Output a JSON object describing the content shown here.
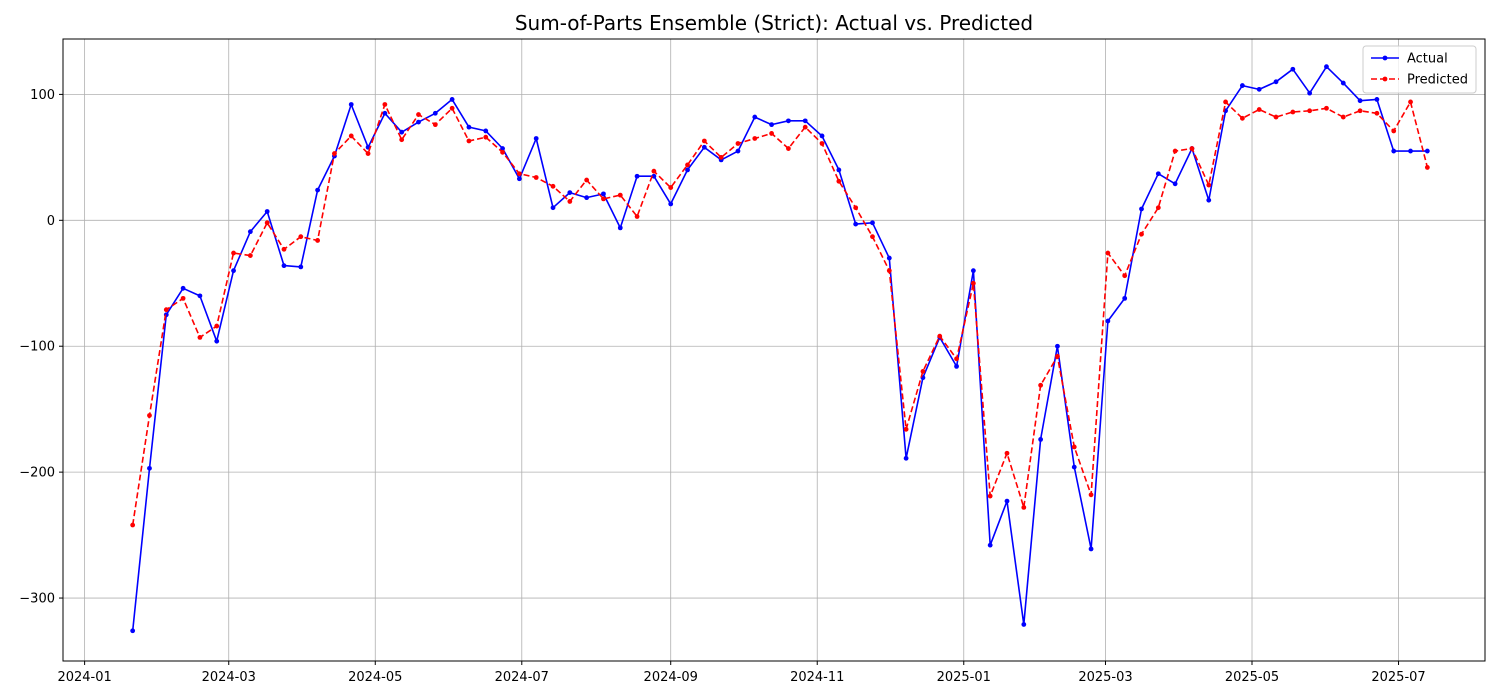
{
  "chart_data": {
    "type": "line",
    "title": "Sum-of-Parts Ensemble (Strict): Actual vs. Predicted",
    "xlabel": "",
    "ylabel": "",
    "x_axis_type": "date",
    "xlim": [
      "2023-12-23",
      "2025-08-06"
    ],
    "ylim": [
      -350,
      144
    ],
    "grid": true,
    "legend_position": "top-right",
    "x_ticks": [
      "2024-01",
      "2024-03",
      "2024-05",
      "2024-07",
      "2024-09",
      "2024-11",
      "2025-01",
      "2025-03",
      "2025-05",
      "2025-07"
    ],
    "y_ticks": [
      -300,
      -200,
      -100,
      0,
      100
    ],
    "x": [
      "2024-01-21",
      "2024-01-28",
      "2024-02-04",
      "2024-02-11",
      "2024-02-18",
      "2024-02-25",
      "2024-03-03",
      "2024-03-10",
      "2024-03-17",
      "2024-03-24",
      "2024-03-31",
      "2024-04-07",
      "2024-04-14",
      "2024-04-21",
      "2024-04-28",
      "2024-05-05",
      "2024-05-12",
      "2024-05-19",
      "2024-05-26",
      "2024-06-02",
      "2024-06-09",
      "2024-06-16",
      "2024-06-23",
      "2024-06-30",
      "2024-07-07",
      "2024-07-14",
      "2024-07-21",
      "2024-07-28",
      "2024-08-04",
      "2024-08-11",
      "2024-08-18",
      "2024-08-25",
      "2024-09-01",
      "2024-09-08",
      "2024-09-15",
      "2024-09-22",
      "2024-09-29",
      "2024-10-06",
      "2024-10-13",
      "2024-10-20",
      "2024-10-27",
      "2024-11-03",
      "2024-11-10",
      "2024-11-17",
      "2024-11-24",
      "2024-12-01",
      "2024-12-08",
      "2024-12-15",
      "2024-12-22",
      "2024-12-29",
      "2025-01-05",
      "2025-01-12",
      "2025-01-19",
      "2025-01-26",
      "2025-02-02",
      "2025-02-09",
      "2025-02-16",
      "2025-02-23",
      "2025-03-02",
      "2025-03-09",
      "2025-03-16",
      "2025-03-23",
      "2025-03-30",
      "2025-04-06",
      "2025-04-13",
      "2025-04-20",
      "2025-04-27",
      "2025-05-04",
      "2025-05-11",
      "2025-05-18",
      "2025-05-25",
      "2025-06-01",
      "2025-06-08",
      "2025-06-15",
      "2025-06-22",
      "2025-06-29",
      "2025-07-06",
      "2025-07-13"
    ],
    "series": [
      {
        "name": "Actual",
        "color": "#0000ff",
        "line_style": "solid",
        "marker": "circle",
        "values": [
          -326,
          -197,
          -75,
          -54,
          -60,
          -96,
          -40,
          -9,
          7,
          -36,
          -37,
          24,
          51,
          92,
          58,
          85,
          70,
          78,
          85,
          96,
          74,
          71,
          57,
          33,
          65,
          10,
          22,
          18,
          21,
          -6,
          35,
          35,
          13,
          40,
          58,
          48,
          55,
          82,
          76,
          79,
          79,
          67,
          40,
          -3,
          -2,
          -30,
          -189,
          -125,
          -93,
          -116,
          -40,
          -258,
          -223,
          -321,
          -174,
          -100,
          -196,
          -261,
          -80,
          -62,
          9,
          37,
          29,
          57,
          16,
          87,
          107,
          104,
          110,
          120,
          101,
          122,
          109,
          95,
          96,
          55,
          55,
          55
        ]
      },
      {
        "name": "Predicted",
        "color": "#ff0000",
        "line_style": "dashed",
        "marker": "circle",
        "values": [
          -242,
          -155,
          -71,
          -62,
          -93,
          -84,
          -26,
          -28,
          -2,
          -23,
          -13,
          -16,
          53,
          67,
          53,
          92,
          64,
          84,
          76,
          89,
          63,
          66,
          54,
          37,
          34,
          27,
          15,
          32,
          17,
          20,
          3,
          39,
          26,
          44,
          63,
          50,
          61,
          65,
          69,
          57,
          74,
          61,
          31,
          10,
          -13,
          -40,
          -166,
          -120,
          -92,
          -110,
          -50,
          -219,
          -185,
          -228,
          -131,
          -108,
          -180,
          -218,
          -26,
          -44,
          -11,
          10,
          55,
          57,
          28,
          94,
          81,
          88,
          82,
          86,
          87,
          89,
          82,
          87,
          85,
          71,
          94,
          42
        ]
      }
    ]
  }
}
